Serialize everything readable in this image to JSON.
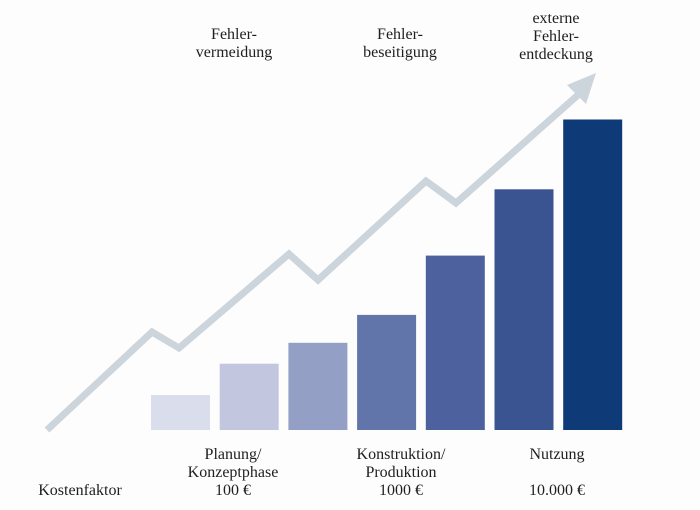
{
  "chart_data": {
    "type": "bar",
    "title": "",
    "xlabel": "",
    "ylabel": "",
    "categories": [
      "",
      "",
      "",
      "",
      "",
      "",
      ""
    ],
    "values": [
      1,
      1.9,
      2.5,
      3.3,
      5.0,
      6.9,
      8.9
    ],
    "ylim": [
      0,
      9
    ],
    "grid": false,
    "legend": "none",
    "colors": [
      "#d9ddec",
      "#c2c7df",
      "#949fc6",
      "#6275aa",
      "#4c619d",
      "#3a5491",
      "#0f3a78"
    ],
    "trend_arrow_color": "#ccd4dc",
    "top_labels": [
      "Fehler-\nvermeidung",
      "Fehler-\nbeseitigung",
      "externe\nFehler-\nentdeckung"
    ],
    "phase_labels": [
      "Planung/\nKonzeptphase",
      "Konstruktion/\nProduktion",
      "Nutzung"
    ],
    "factor_label": "Kostenfaktor",
    "factor_values": [
      "100 €",
      "1000 €",
      "10.000 €"
    ]
  }
}
